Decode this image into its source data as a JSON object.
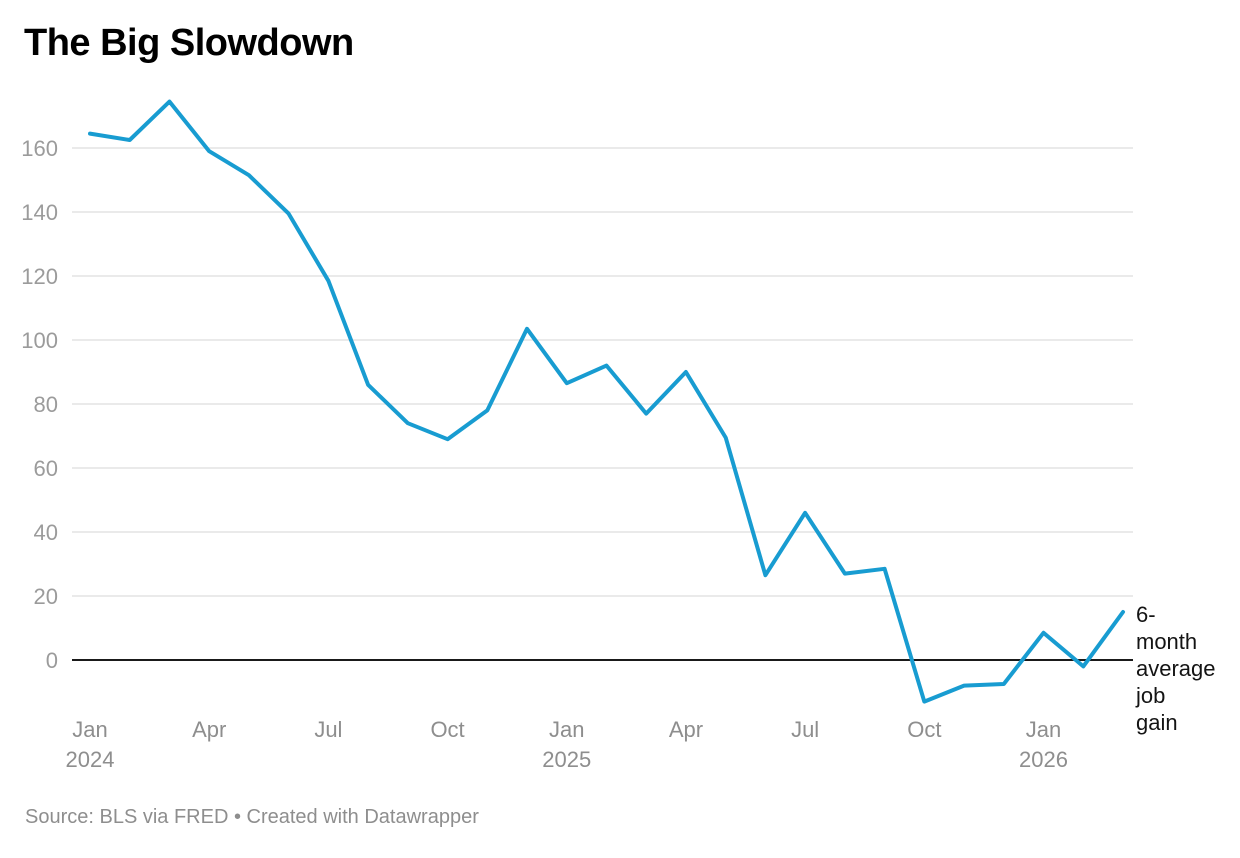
{
  "header": {
    "title": "The Big Slowdown"
  },
  "chart_data": {
    "type": "line",
    "title": "The Big Slowdown",
    "series_label": "6-month average job gain",
    "x": [
      "Jan 2024",
      "Feb 2024",
      "Mar 2024",
      "Apr 2024",
      "May 2024",
      "Jun 2024",
      "Jul 2024",
      "Aug 2024",
      "Sep 2024",
      "Oct 2024",
      "Nov 2024",
      "Dec 2024",
      "Jan 2025",
      "Feb 2025",
      "Mar 2025",
      "Apr 2025",
      "May 2025",
      "Jun 2025",
      "Jul 2025",
      "Aug 2025",
      "Sep 2025",
      "Oct 2025",
      "Nov 2025",
      "Dec 2025",
      "Jan 2026",
      "Feb 2026",
      "Mar 2026"
    ],
    "values": [
      164.5,
      162.5,
      174.5,
      159,
      151.5,
      139.5,
      118.5,
      86,
      74,
      69,
      78,
      103.5,
      86.5,
      92,
      77,
      90,
      69.5,
      26.5,
      46,
      27,
      28.5,
      -13,
      -8,
      -7.5,
      8.5,
      -2,
      15
    ],
    "y_ticks": [
      0,
      20,
      40,
      60,
      80,
      100,
      120,
      140,
      160
    ],
    "x_ticks": [
      {
        "index": 0,
        "label": "Jan",
        "year": "2024"
      },
      {
        "index": 3,
        "label": "Apr"
      },
      {
        "index": 6,
        "label": "Jul"
      },
      {
        "index": 9,
        "label": "Oct"
      },
      {
        "index": 12,
        "label": "Jan",
        "year": "2025"
      },
      {
        "index": 15,
        "label": "Apr"
      },
      {
        "index": 18,
        "label": "Jul"
      },
      {
        "index": 21,
        "label": "Oct"
      },
      {
        "index": 24,
        "label": "Jan",
        "year": "2026"
      }
    ],
    "annotation_lines": [
      "6-",
      "month",
      "average",
      "job",
      "gain"
    ],
    "ylim": [
      -20,
      180
    ],
    "grid": true,
    "legend": "none",
    "colors": {
      "line": "#189CD1",
      "zero_line": "#1a1a1a",
      "grid": "#e4e4e4",
      "y_tick_label": "#9b9b9b",
      "x_tick_label": "#8e8e8e"
    }
  },
  "footer": {
    "source": "Source: BLS via FRED • Created with Datawrapper"
  }
}
